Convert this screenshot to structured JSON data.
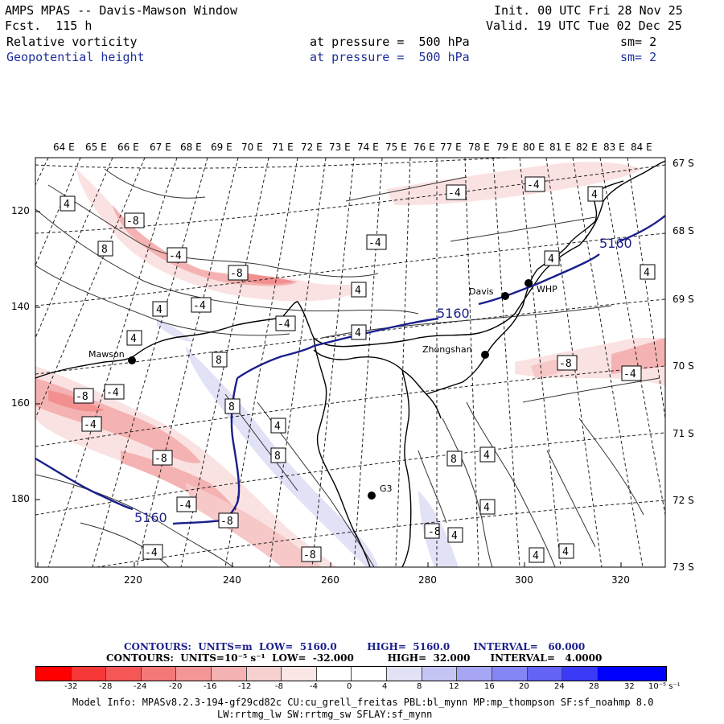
{
  "header": {
    "title": "AMPS MPAS -- Davis-Mawson Window",
    "init": "Init. 00 UTC Fri 28 Nov 25",
    "fcst": "Fcst.  115 h",
    "valid": "Valid. 19 UTC Tue 02 Dec 25",
    "field1_name": "Relative vorticity",
    "field1_level": "at pressure =  500 hPa",
    "field1_sm": "sm= 2",
    "field2_name": "Geopotential height",
    "field2_level": "at pressure =  500 hPa",
    "field2_sm": "sm= 2"
  },
  "map": {
    "lon_labels": [
      "64 E",
      "65 E",
      "66 E",
      "67 E",
      "68 E",
      "69 E",
      "70 E",
      "71 E",
      "72 E",
      "73 E",
      "74 E",
      "75 E",
      "76 E",
      "77 E",
      "78 E",
      "79 E",
      "80 E",
      "81 E",
      "82 E",
      "83 E",
      "84 E"
    ],
    "lat_labels": [
      "67 S",
      "68 S",
      "69 S",
      "70 S",
      "71 S",
      "72 S",
      "73 S"
    ],
    "y_ticks": [
      "120",
      "140",
      "160",
      "180"
    ],
    "x_ticks": [
      "200",
      "220",
      "240",
      "260",
      "280",
      "300",
      "320"
    ],
    "stations": [
      {
        "name": "Mawson"
      },
      {
        "name": "Davis"
      },
      {
        "name": "WHP"
      },
      {
        "name": "Zhongshan"
      },
      {
        "name": "G3"
      }
    ],
    "vort_labels": [
      "4",
      "-8",
      "8",
      "-4",
      "-8",
      "4",
      "-4",
      "4",
      "4",
      "-4",
      "-4",
      "4",
      "-4",
      "4",
      "4",
      "4",
      "-4",
      "-8",
      "-4",
      "-8",
      "-4",
      "8",
      "-8",
      "8",
      "8",
      "4",
      "-4",
      "-8",
      "8",
      "4",
      "-4",
      "-8",
      "4",
      "4",
      "-4",
      "-8",
      "4",
      "4",
      "-4"
    ],
    "height_labels": [
      "5160",
      "5160",
      "5160"
    ]
  },
  "legend": {
    "height_line": "CONTOURS:  UNITS=m  LOW=  5160.0         HIGH=  5160.0       INTERVAL=   60.000",
    "vort_line": "CONTOURS:  UNITS=10⁻⁵ s⁻¹  LOW=  -32.000          HIGH=  32.000      INTERVAL=   4.0000",
    "colorbar_ticks": [
      "-32",
      "-28",
      "-24",
      "-20",
      "-16",
      "-12",
      "-8",
      "-4",
      "0",
      "4",
      "8",
      "12",
      "16",
      "20",
      "24",
      "28",
      "32"
    ],
    "colorbar_units": "10⁻⁵ s⁻¹",
    "colorbar_colors": [
      "#ff0000",
      "#f73838",
      "#f55757",
      "#f57878",
      "#f59696",
      "#f5b2b2",
      "#f7d0d0",
      "#fbe6e6",
      "#ffffff",
      "#ffffff",
      "#e2e2f7",
      "#c4c4f5",
      "#a6a6f5",
      "#8585f5",
      "#6363f5",
      "#3b3bf7",
      "#0000ff"
    ]
  },
  "footer": {
    "model_info": "Model Info: MPASv8.2.3-194-gf29cd82c CU:cu_grell_freitas PBL:bl_mynn MP:mp_thompson SF:sf_noahmp 8.0",
    "model_info2": "LW:rrtmg_lw SW:rrtmg_sw SFLAY:sf_mynn"
  }
}
